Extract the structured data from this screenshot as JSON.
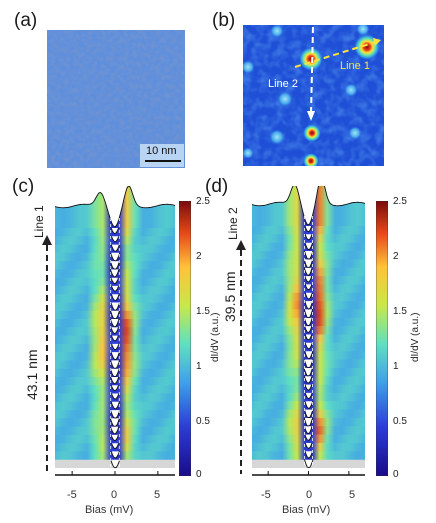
{
  "panels": {
    "a": {
      "label": "(a)",
      "scalebar": "10 nm"
    },
    "b": {
      "label": "(b)",
      "line1": "Line 1",
      "line2": "Line 2"
    },
    "c": {
      "label": "(c)",
      "side_label": "Line 1",
      "distance": "43.1 nm"
    },
    "d": {
      "label": "(d)",
      "side_label": "Line 2",
      "distance": "39.5 nm"
    }
  },
  "colorbar": {
    "title": "dI/dV (a.u.)",
    "ticks": [
      "2.5",
      "2",
      "1.5",
      "1",
      "0.5",
      "0"
    ],
    "range": [
      0,
      2.5
    ]
  },
  "axis": {
    "xlabel": "Bias (mV)",
    "ticks": [
      "-5",
      "0",
      "5"
    ]
  },
  "chart_data": [
    {
      "type": "line",
      "panel": "c",
      "description_from_axes": "stacked dI/dV spectra along Line 1",
      "xlabel": "Bias (mV)",
      "xlim": [
        -7,
        7
      ],
      "x_ticks": [
        -5,
        0,
        5
      ],
      "n_spectra": 30,
      "distance_label": "43.1 nm",
      "colorbar_range": [
        0,
        2.5
      ]
    },
    {
      "type": "line",
      "panel": "d",
      "xlabel": "Bias (mV)",
      "xlim": [
        -7,
        7
      ],
      "x_ticks": [
        -5,
        0,
        5
      ],
      "n_spectra": 30,
      "distance_label": "39.5 nm",
      "colorbar_range": [
        0,
        2.5
      ]
    }
  ]
}
